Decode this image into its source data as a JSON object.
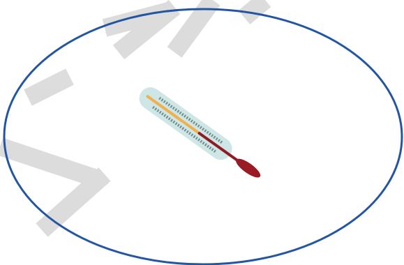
{
  "scene": {
    "background_color": "#ffffff",
    "outline_color": "#2356a2",
    "watermark_color": "#d9d9d9",
    "thermometer": {
      "body_color": "#cfe6e6",
      "tick_color": "#6f8a8a",
      "tube_upper_color": "#f2b04a",
      "tube_lower_color": "#8f1c24",
      "bulb_color": "#9b1b24"
    }
  }
}
